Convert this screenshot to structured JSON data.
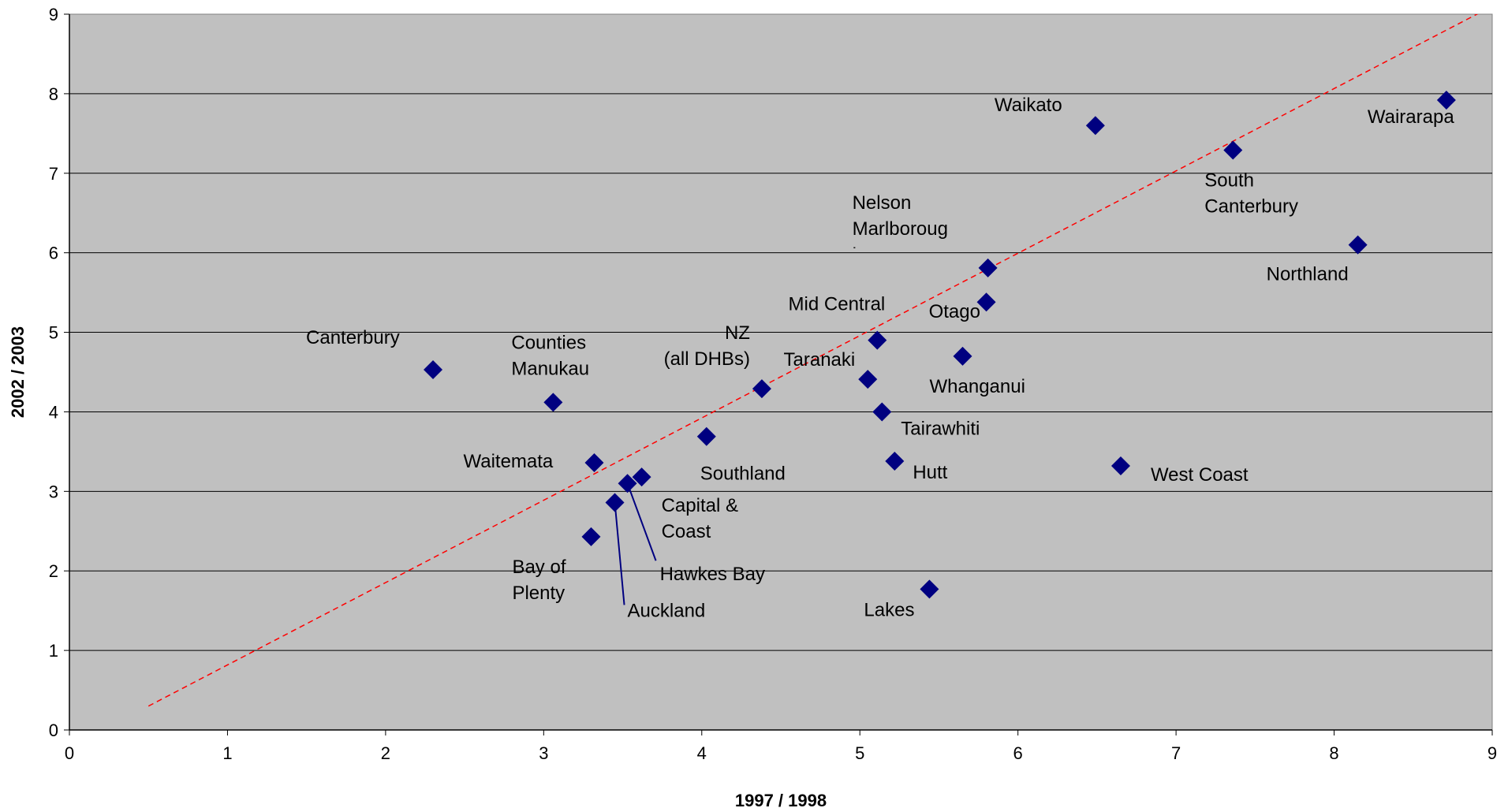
{
  "chart_data": {
    "type": "scatter",
    "title": "",
    "xlabel": "1997 / 1998",
    "ylabel": "2002 / 2003",
    "xlim": [
      0,
      9
    ],
    "ylim": [
      0,
      9
    ],
    "xticks": [
      "0",
      "1",
      "2",
      "3",
      "4",
      "5",
      "6",
      "7",
      "8",
      "9"
    ],
    "yticks": [
      "0",
      "1",
      "2",
      "3",
      "4",
      "5",
      "6",
      "7",
      "8",
      "9"
    ],
    "grid": "horizontal",
    "plot_background": "#c0c0c0",
    "marker_color": "#000080",
    "trendline": {
      "color": "#ff0000",
      "style": "dashed",
      "from": [
        0.5,
        0.3
      ],
      "to": [
        9.0,
        9.1
      ]
    },
    "points": [
      {
        "name": "Canterbury",
        "lines": [
          "Canterbury"
        ],
        "x": 2.3,
        "y": 4.53
      },
      {
        "name": "Counties Manukau",
        "lines": [
          "Counties",
          "Manukau"
        ],
        "x": 3.06,
        "y": 4.12
      },
      {
        "name": "Waitemata",
        "lines": [
          "Waitemata"
        ],
        "x": 3.32,
        "y": 3.36
      },
      {
        "name": "Bay of Plenty",
        "lines": [
          "Bay of",
          "Plenty"
        ],
        "x": 3.3,
        "y": 2.43
      },
      {
        "name": "Auckland",
        "lines": [
          "Auckland"
        ],
        "x": 3.45,
        "y": 2.86
      },
      {
        "name": "Hawkes Bay",
        "lines": [
          "Hawkes Bay"
        ],
        "x": 3.53,
        "y": 3.1
      },
      {
        "name": "Capital & Coast",
        "lines": [
          "Capital &",
          "Coast"
        ],
        "x": 3.62,
        "y": 3.18
      },
      {
        "name": "Southland",
        "lines": [
          "Southland"
        ],
        "x": 4.03,
        "y": 3.69
      },
      {
        "name": "NZ (all DHBs)",
        "lines": [
          "NZ",
          "(all DHBs)"
        ],
        "x": 4.38,
        "y": 4.29
      },
      {
        "name": "Taranaki",
        "lines": [
          "Taranaki"
        ],
        "x": 5.05,
        "y": 4.41
      },
      {
        "name": "Mid Central",
        "lines": [
          "Mid Central"
        ],
        "x": 5.11,
        "y": 4.9
      },
      {
        "name": "Tairawhiti",
        "lines": [
          "Tairawhiti"
        ],
        "x": 5.14,
        "y": 4.0
      },
      {
        "name": "Hutt",
        "lines": [
          "Hutt"
        ],
        "x": 5.22,
        "y": 3.38
      },
      {
        "name": "Lakes",
        "lines": [
          "Lakes"
        ],
        "x": 5.44,
        "y": 1.77
      },
      {
        "name": "Whanganui",
        "lines": [
          "Whanganui"
        ],
        "x": 5.65,
        "y": 4.7
      },
      {
        "name": "Otago",
        "lines": [
          "Otago"
        ],
        "x": 5.8,
        "y": 5.38
      },
      {
        "name": "Nelson Marlborough",
        "lines": [
          "Nelson",
          "Marlboroug",
          "h"
        ],
        "x": 5.81,
        "y": 5.81
      },
      {
        "name": "Waikato",
        "lines": [
          "Waikato"
        ],
        "x": 6.49,
        "y": 7.6
      },
      {
        "name": "West Coast",
        "lines": [
          "West Coast"
        ],
        "x": 6.65,
        "y": 3.32
      },
      {
        "name": "South Canterbury",
        "lines": [
          "South",
          "Canterbury"
        ],
        "x": 7.36,
        "y": 7.29
      },
      {
        "name": "Northland",
        "lines": [
          "Northland"
        ],
        "x": 8.15,
        "y": 6.1
      },
      {
        "name": "Wairarapa",
        "lines": [
          "Wairarapa"
        ],
        "x": 8.71,
        "y": 7.92
      }
    ]
  }
}
